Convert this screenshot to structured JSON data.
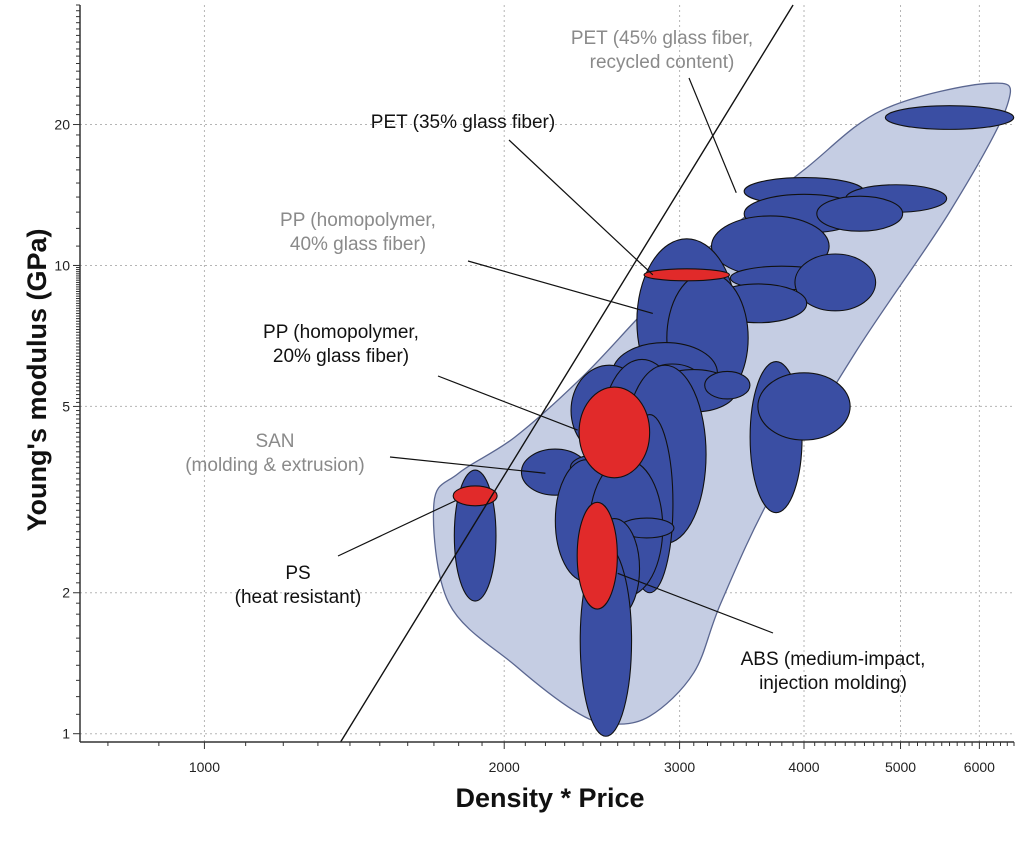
{
  "chart_data": {
    "type": "scatter",
    "xlabel": "Density * Price",
    "ylabel": "Young's modulus (GPa)",
    "x_scale": "log",
    "y_scale": "log",
    "xlim": [
      750,
      6500
    ],
    "ylim": [
      0.96,
      36
    ],
    "x_ticks": [
      {
        "value": 1000,
        "label": "1000"
      },
      {
        "value": 2000,
        "label": "2000"
      },
      {
        "value": 3000,
        "label": "3000"
      },
      {
        "value": 4000,
        "label": "4000"
      },
      {
        "value": 5000,
        "label": "5000"
      },
      {
        "value": 6000,
        "label": "6000"
      }
    ],
    "y_ticks": [
      {
        "value": 1,
        "label": "1"
      },
      {
        "value": 2,
        "label": "2"
      },
      {
        "value": 5,
        "label": "5"
      },
      {
        "value": 10,
        "label": "10"
      },
      {
        "value": 20,
        "label": "20"
      }
    ],
    "grid": true,
    "colors": {
      "envelope_fill": "#c5cde3",
      "envelope_stroke": "#5a6690",
      "material": "#3a4ea3",
      "highlight": "#e12a2a",
      "outline": "#111111"
    },
    "envelope": [
      [
        1700,
        3.1
      ],
      [
        1760,
        1.9
      ],
      [
        2050,
        1.4
      ],
      [
        2350,
        1.12
      ],
      [
        2550,
        1.05
      ],
      [
        2800,
        1.09
      ],
      [
        3100,
        1.35
      ],
      [
        3300,
        1.9
      ],
      [
        3700,
        3.2
      ],
      [
        4500,
        6.5
      ],
      [
        5600,
        13
      ],
      [
        6400,
        22
      ],
      [
        6150,
        24.5
      ],
      [
        4800,
        21.5
      ],
      [
        4000,
        16
      ],
      [
        3300,
        11.5
      ],
      [
        2800,
        8.2
      ],
      [
        2400,
        5.8
      ],
      [
        2050,
        4.3
      ],
      [
        1800,
        3.6
      ]
    ],
    "trend_line": [
      [
        1370,
        0.96
      ],
      [
        3900,
        36
      ]
    ],
    "materials": [
      {
        "x": 5600,
        "y": 20.7,
        "w": 1650,
        "h_ratio": 1.06,
        "color": "blue"
      },
      {
        "x": 4000,
        "y": 14.4,
        "w": 1100,
        "h_ratio": 1.07,
        "color": "blue"
      },
      {
        "x": 4950,
        "y": 13.9,
        "w": 1150,
        "h_ratio": 1.07,
        "color": "blue"
      },
      {
        "x": 4000,
        "y": 12.9,
        "w": 1100,
        "h_ratio": 1.1,
        "color": "blue"
      },
      {
        "x": 4550,
        "y": 12.9,
        "w": 900,
        "h_ratio": 1.09,
        "color": "blue"
      },
      {
        "x": 3700,
        "y": 11.0,
        "w": 1000,
        "h_ratio": 1.16,
        "color": "blue"
      },
      {
        "x": 3800,
        "y": 9.4,
        "w": 900,
        "h_ratio": 1.06,
        "color": "blue"
      },
      {
        "x": 4300,
        "y": 9.2,
        "w": 800,
        "h_ratio": 1.15,
        "color": "blue"
      },
      {
        "x": 3600,
        "y": 8.3,
        "w": 800,
        "h_ratio": 1.1,
        "color": "blue"
      },
      {
        "x": 3050,
        "y": 7.6,
        "w": 700,
        "h_ratio": 1.5,
        "color": "blue"
      },
      {
        "x": 3200,
        "y": 7.0,
        "w": 600,
        "h_ratio": 1.38,
        "color": "blue"
      },
      {
        "x": 2900,
        "y": 5.9,
        "w": 700,
        "h_ratio": 1.16,
        "color": "blue"
      },
      {
        "x": 2950,
        "y": 5.5,
        "w": 450,
        "h_ratio": 1.12,
        "color": "blue"
      },
      {
        "x": 3100,
        "y": 5.4,
        "w": 600,
        "h_ratio": 1.11,
        "color": "blue"
      },
      {
        "x": 3350,
        "y": 5.55,
        "w": 350,
        "h_ratio": 1.07,
        "color": "blue"
      },
      {
        "x": 2550,
        "y": 4.9,
        "w": 450,
        "h_ratio": 1.25,
        "color": "blue"
      },
      {
        "x": 2750,
        "y": 4.5,
        "w": 500,
        "h_ratio": 1.4,
        "color": "blue"
      },
      {
        "x": 2900,
        "y": 3.95,
        "w": 550,
        "h_ratio": 1.55,
        "color": "blue"
      },
      {
        "x": 3750,
        "y": 4.3,
        "w": 450,
        "h_ratio": 1.45,
        "color": "blue"
      },
      {
        "x": 4000,
        "y": 5.0,
        "w": 850,
        "h_ratio": 1.18,
        "color": "blue"
      },
      {
        "x": 2250,
        "y": 3.62,
        "w": 350,
        "h_ratio": 1.12,
        "color": "blue"
      },
      {
        "x": 2500,
        "y": 3.7,
        "w": 350,
        "h_ratio": 1.07,
        "color": "blue"
      },
      {
        "x": 2550,
        "y": 3.3,
        "w": 350,
        "h_ratio": 1.07,
        "color": "blue"
      },
      {
        "x": 2800,
        "y": 3.1,
        "w": 300,
        "h_ratio": 1.55,
        "color": "blue"
      },
      {
        "x": 2420,
        "y": 2.85,
        "w": 350,
        "h_ratio": 1.35,
        "color": "blue"
      },
      {
        "x": 2650,
        "y": 2.75,
        "w": 450,
        "h_ratio": 1.4,
        "color": "blue"
      },
      {
        "x": 2780,
        "y": 2.75,
        "w": 350,
        "h_ratio": 1.05,
        "color": "blue"
      },
      {
        "x": 1870,
        "y": 2.65,
        "w": 180,
        "h_ratio": 1.38,
        "color": "blue"
      },
      {
        "x": 2580,
        "y": 2.25,
        "w": 300,
        "h_ratio": 1.28,
        "color": "blue"
      },
      {
        "x": 2530,
        "y": 1.58,
        "w": 300,
        "h_ratio": 1.6,
        "color": "blue"
      },
      {
        "x": 3050,
        "y": 9.55,
        "w": 600,
        "h_ratio": 1.03,
        "color": "red"
      },
      {
        "x": 2580,
        "y": 4.4,
        "w": 420,
        "h_ratio": 1.25,
        "color": "red"
      },
      {
        "x": 1870,
        "y": 3.22,
        "w": 190,
        "h_ratio": 1.05,
        "color": "red"
      },
      {
        "x": 2480,
        "y": 2.4,
        "w": 230,
        "h_ratio": 1.3,
        "color": "red"
      }
    ],
    "annotations": [
      {
        "id": "pet-45",
        "style": "gray",
        "lines": [
          "PET (45% glass fiber,",
          "recycled content)"
        ],
        "target": [
          3420,
          14.3
        ]
      },
      {
        "id": "pet-35",
        "style": "dark",
        "lines": [
          "PET (35% glass fiber)"
        ],
        "target": [
          2820,
          9.55
        ]
      },
      {
        "id": "pp-40",
        "style": "gray",
        "lines": [
          "PP (homopolymer,",
          "40% glass fiber)"
        ],
        "target": [
          2820,
          7.9
        ]
      },
      {
        "id": "pp-20",
        "style": "dark",
        "lines": [
          "PP (homopolymer,",
          "20% glass fiber)"
        ],
        "target": [
          2370,
          4.45
        ]
      },
      {
        "id": "san",
        "style": "gray",
        "lines": [
          "SAN",
          "(molding & extrusion)"
        ],
        "target": [
          2200,
          3.6
        ]
      },
      {
        "id": "ps",
        "style": "dark",
        "lines": [
          "PS",
          "(heat resistant)"
        ],
        "target": [
          1790,
          3.15
        ]
      },
      {
        "id": "abs",
        "style": "dark",
        "lines": [
          "ABS (medium-impact,",
          "injection molding)"
        ],
        "target": [
          2600,
          2.2
        ]
      }
    ]
  }
}
